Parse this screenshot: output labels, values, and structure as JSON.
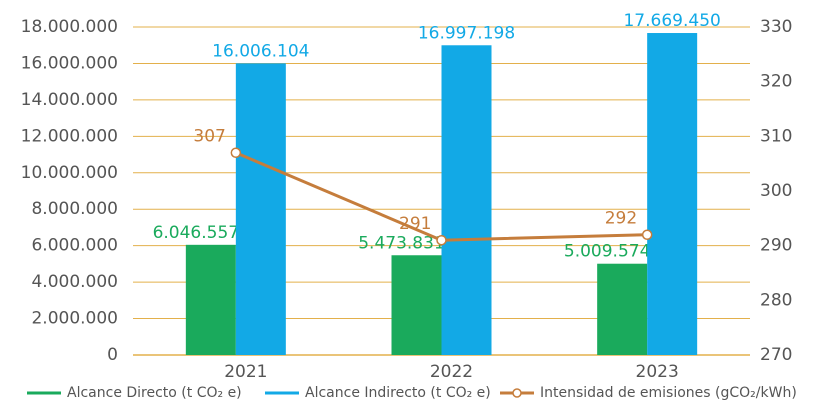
{
  "chart_data": {
    "type": "bar_line",
    "categories": [
      "2021",
      "2022",
      "2023"
    ],
    "series": [
      {
        "name": "Alcance Directo (t CO₂ e)",
        "color": "#1aaa5c",
        "values": [
          6046557,
          5473831,
          5009574
        ],
        "value_labels": [
          "6.046.557",
          "5.473.831",
          "5.009.574"
        ]
      },
      {
        "name": "Alcance Indirecto (t CO₂ e)",
        "color": "#12a9e6",
        "values": [
          16006104,
          16997198,
          17669450
        ],
        "value_labels": [
          "16.006.104",
          "16.997.198",
          "17.669.450"
        ]
      },
      {
        "name": "Intensidad de emisiones (gCO₂/kWh)",
        "color": "#c57d3c",
        "axis": "y2",
        "values": [
          307,
          291,
          292
        ]
      }
    ],
    "ylim": [
      0,
      18000000
    ],
    "yticks": [
      0,
      {
        "value": 2000000,
        "label": "2.000.000"
      },
      {
        "value": 4000000,
        "label": "4.000.000"
      },
      {
        "value": 6000000,
        "label": "6.000.000"
      },
      {
        "value": 8000000,
        "label": "8.000.000"
      },
      {
        "value": 10000000,
        "label": "10.000.000"
      },
      {
        "value": 12000000,
        "label": "12.000.000"
      },
      {
        "value": 14000000,
        "label": "14.000.000"
      },
      {
        "value": 16000000,
        "label": "16.000.000"
      },
      {
        "value": 18000000,
        "label": "18.000.000"
      }
    ],
    "y2lim": [
      270,
      330
    ],
    "y2ticks": [
      270,
      280,
      290,
      300,
      310,
      320,
      330
    ],
    "grid": true,
    "grid_color": "#e3b04b",
    "legend": "bottom"
  }
}
